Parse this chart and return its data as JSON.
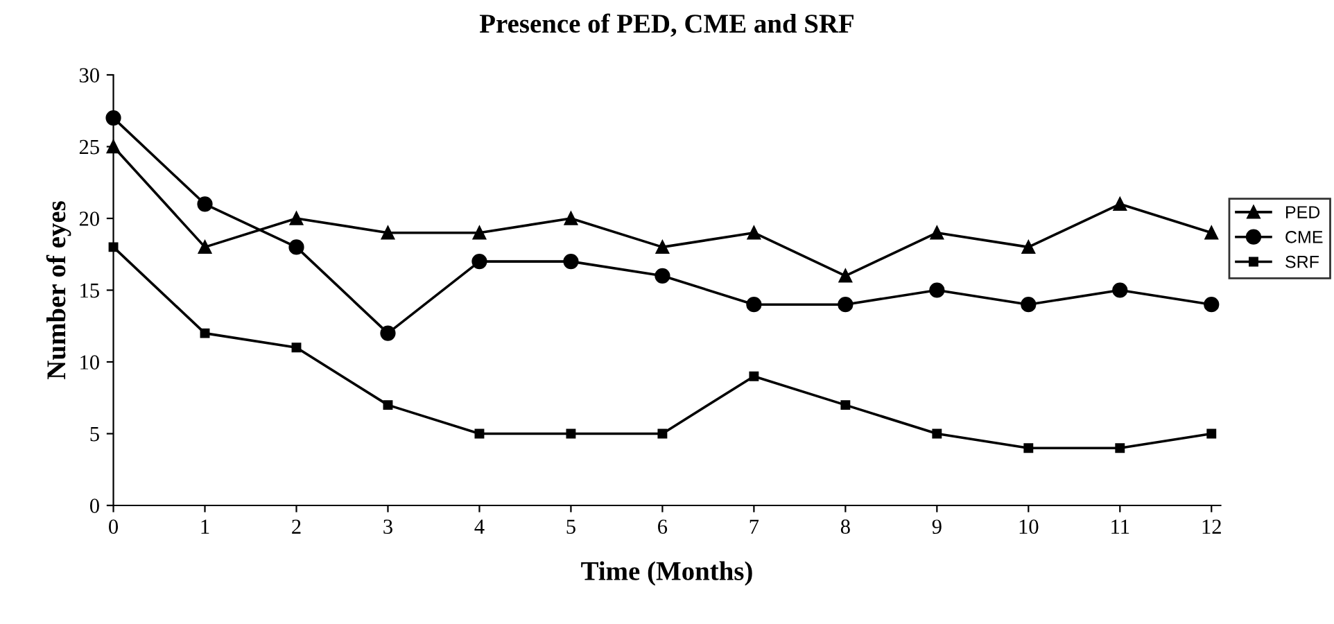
{
  "chart_data": {
    "type": "line",
    "title": "Presence of PED, CME and SRF",
    "xlabel": "Time (Months)",
    "ylabel": "Number of eyes",
    "x": [
      0,
      1,
      2,
      3,
      4,
      5,
      6,
      7,
      8,
      9,
      10,
      11,
      12
    ],
    "series": [
      {
        "name": "PED",
        "color": "#000000",
        "marker": "triangle",
        "values": [
          25,
          18,
          20,
          19,
          19,
          20,
          18,
          19,
          16,
          19,
          18,
          21,
          19
        ]
      },
      {
        "name": "CME",
        "color": "#000000",
        "marker": "circle",
        "values": [
          27,
          21,
          18,
          12,
          17,
          17,
          16,
          14,
          14,
          15,
          14,
          15,
          14
        ]
      },
      {
        "name": "SRF",
        "color": "#000000",
        "marker": "square",
        "values": [
          18,
          12,
          11,
          7,
          5,
          5,
          5,
          9,
          7,
          5,
          4,
          4,
          5
        ]
      }
    ],
    "xlim": [
      0,
      12.1
    ],
    "xticks": [
      0,
      1,
      2,
      3,
      4,
      5,
      6,
      7,
      8,
      9,
      10,
      11,
      12
    ],
    "ylim": [
      0,
      30
    ],
    "yticks": [
      0,
      5,
      10,
      15,
      20,
      25,
      30
    ],
    "grid": false,
    "legend": "right",
    "line_style": "solid"
  }
}
